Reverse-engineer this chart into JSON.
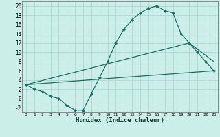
{
  "xlabel": "Humidex (Indice chaleur)",
  "bg_color": "#cceee8",
  "grid_color": "#aad8d0",
  "line_color": "#1a6e64",
  "xlim": [
    -0.5,
    23.5
  ],
  "ylim": [
    -3,
    21
  ],
  "line1_x": [
    0,
    1,
    2,
    3,
    4,
    5,
    6,
    7,
    8,
    9,
    10,
    11,
    12,
    13,
    14,
    15,
    16,
    17,
    18,
    19,
    20,
    21,
    22,
    23
  ],
  "line1_y": [
    3,
    2,
    1.5,
    0.5,
    0,
    -1.5,
    -2.5,
    -2.5,
    1,
    4.5,
    8,
    12,
    15,
    17,
    18.5,
    19.5,
    20,
    19,
    18.5,
    14,
    12,
    10,
    8,
    6
  ],
  "line2_x": [
    0,
    23
  ],
  "line2_y": [
    3,
    6
  ],
  "line3_x": [
    0,
    20,
    23
  ],
  "line3_y": [
    3,
    12,
    8
  ]
}
